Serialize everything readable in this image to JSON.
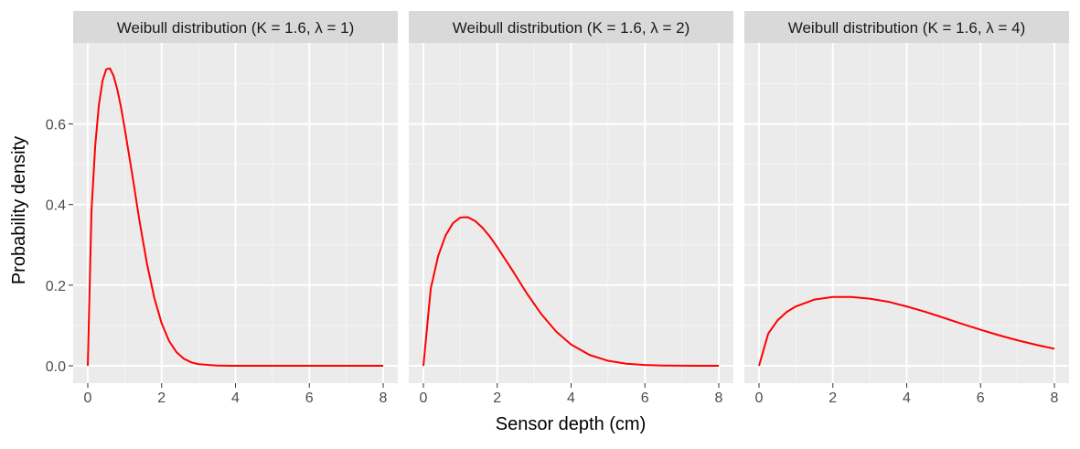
{
  "chart_data": {
    "type": "line",
    "ylabel": "Probability density",
    "xlabel": "Sensor depth (cm)",
    "xlim": [
      0,
      8
    ],
    "ylim": [
      0,
      0.8
    ],
    "x_ticks": [
      0,
      2,
      4,
      6,
      8
    ],
    "y_ticks": [
      0.0,
      0.2,
      0.4,
      0.6
    ],
    "y_tick_labels": [
      "0.0",
      "0.2",
      "0.4",
      "0.6"
    ],
    "grid": true,
    "line_color": "#ff0000",
    "panel_background": "#ebebeb",
    "strip_background": "#d9d9d9",
    "panels": [
      {
        "title": "Weibull distribution (K = 1.6,  λ = 1)",
        "k": 1.6,
        "lambda": 1,
        "x": [
          0,
          0.1,
          0.2,
          0.3,
          0.4,
          0.5,
          0.6,
          0.7,
          0.8,
          0.9,
          1.0,
          1.2,
          1.4,
          1.6,
          1.8,
          2.0,
          2.2,
          2.4,
          2.6,
          2.8,
          3.0,
          3.5,
          4.0,
          5.0,
          6.0,
          7.0,
          8.0
        ],
        "y": [
          0,
          0.3836,
          0.5447,
          0.6465,
          0.7075,
          0.7358,
          0.7376,
          0.7189,
          0.6852,
          0.641,
          0.5886,
          0.4767,
          0.3596,
          0.2546,
          0.169,
          0.1054,
          0.0618,
          0.0341,
          0.0177,
          0.0087,
          0.004,
          0.0005,
          0.0,
          0.0,
          0.0,
          0.0,
          0.0
        ]
      },
      {
        "title": "Weibull distribution (K = 1.6,  λ = 2)",
        "k": 1.6,
        "lambda": 2,
        "x": [
          0,
          0.2,
          0.4,
          0.6,
          0.8,
          1.0,
          1.2,
          1.4,
          1.6,
          1.8,
          2.0,
          2.4,
          2.8,
          3.2,
          3.6,
          4.0,
          4.5,
          5.0,
          5.5,
          6.0,
          6.5,
          7.0,
          7.5,
          8.0
        ],
        "y": [
          0,
          0.1918,
          0.2724,
          0.3232,
          0.3538,
          0.3679,
          0.3688,
          0.3594,
          0.3426,
          0.3205,
          0.2943,
          0.2384,
          0.1798,
          0.1273,
          0.0845,
          0.0527,
          0.0269,
          0.0124,
          0.0052,
          0.002,
          0.0007,
          0.0002,
          0.0001,
          0.0
        ]
      },
      {
        "title": "Weibull distribution (K = 1.6,  λ = 4)",
        "k": 1.6,
        "lambda": 4,
        "x": [
          0,
          0.25,
          0.5,
          0.75,
          1.0,
          1.5,
          2.0,
          2.5,
          3.0,
          3.5,
          4.0,
          4.5,
          5.0,
          5.5,
          6.0,
          6.5,
          7.0,
          7.5,
          8.0
        ],
        "y": [
          0,
          0.0798,
          0.1125,
          0.1335,
          0.1474,
          0.1642,
          0.1708,
          0.1707,
          0.1665,
          0.1589,
          0.1472,
          0.134,
          0.1191,
          0.104,
          0.0894,
          0.0757,
          0.0632,
          0.0521,
          0.0423
        ]
      }
    ]
  }
}
